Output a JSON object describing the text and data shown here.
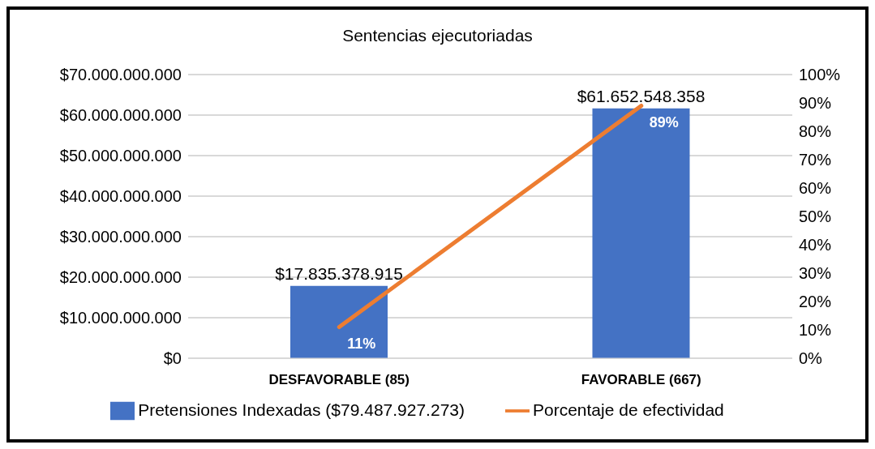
{
  "chart_data": {
    "type": "bar",
    "title": "Sentencias ejecutoriadas",
    "categories": [
      "DESFAVORABLE (85)",
      "FAVORABLE (667)"
    ],
    "series": [
      {
        "name": "Pretensiones Indexadas ($79.487.927.273)",
        "color": "#4472c4",
        "values": [
          17835378915,
          61652548358
        ],
        "value_labels": [
          "$17.835.378.915",
          "$61.652.548.358"
        ]
      },
      {
        "name": "Porcentaje de efectividad",
        "type": "line",
        "axis": "y2",
        "color": "#ed7d31",
        "values": [
          11,
          89
        ],
        "value_labels": [
          "11%",
          "89%"
        ]
      }
    ],
    "ylim": [
      0,
      70000000000
    ],
    "yticks": [
      {
        "value": 0,
        "label": "$0"
      },
      {
        "value": 10000000000,
        "label": "$10.000.000.000"
      },
      {
        "value": 20000000000,
        "label": "$20.000.000.000"
      },
      {
        "value": 30000000000,
        "label": "$30.000.000.000"
      },
      {
        "value": 40000000000,
        "label": "$40.000.000.000"
      },
      {
        "value": 50000000000,
        "label": "$50.000.000.000"
      },
      {
        "value": 60000000000,
        "label": "$60.000.000.000"
      },
      {
        "value": 70000000000,
        "label": "$70.000.000.000"
      }
    ],
    "y2lim": [
      0,
      100
    ],
    "y2ticks": [
      {
        "value": 0,
        "label": "0%"
      },
      {
        "value": 10,
        "label": "10%"
      },
      {
        "value": 20,
        "label": "20%"
      },
      {
        "value": 30,
        "label": "30%"
      },
      {
        "value": 40,
        "label": "40%"
      },
      {
        "value": 50,
        "label": "50%"
      },
      {
        "value": 60,
        "label": "60%"
      },
      {
        "value": 70,
        "label": "70%"
      },
      {
        "value": 80,
        "label": "80%"
      },
      {
        "value": 90,
        "label": "90%"
      },
      {
        "value": 100,
        "label": "100%"
      }
    ],
    "grid": "y",
    "legend": "bottom",
    "marker": "none",
    "line_style": "solid"
  }
}
